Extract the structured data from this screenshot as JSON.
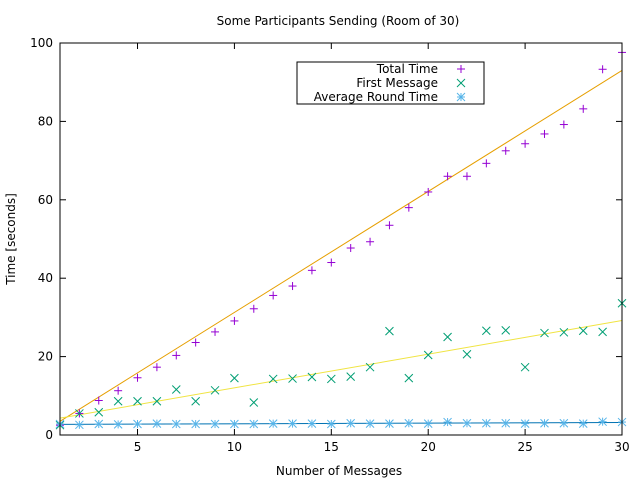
{
  "chart_data": {
    "type": "scatter",
    "title": "Some Participants Sending (Room of 30)",
    "xlabel": "Number of Messages",
    "ylabel": "Time [seconds]",
    "xlim": [
      1,
      30
    ],
    "ylim": [
      0,
      100
    ],
    "xticks": [
      5,
      10,
      15,
      20,
      25,
      30
    ],
    "yticks": [
      0,
      20,
      40,
      60,
      80,
      100
    ],
    "legend_position": "top-center",
    "grid": false,
    "series": [
      {
        "name": "Total Time",
        "marker": "plus",
        "color": "#9400d3",
        "x": [
          1,
          2,
          3,
          4,
          5,
          6,
          7,
          8,
          9,
          10,
          11,
          12,
          13,
          14,
          15,
          16,
          17,
          18,
          19,
          20,
          21,
          22,
          23,
          24,
          25,
          26,
          27,
          28,
          29,
          30
        ],
        "y": [
          2.5,
          5.5,
          8.8,
          11.3,
          14.6,
          17.3,
          20.3,
          23.6,
          26.3,
          29.1,
          32.2,
          35.6,
          38.0,
          42.0,
          44.0,
          47.7,
          49.3,
          53.5,
          58.0,
          62.0,
          66.0,
          66.0,
          69.3,
          72.5,
          74.3,
          76.8,
          79.2,
          83.2,
          93.3,
          97.6
        ]
      },
      {
        "name": "First Message",
        "marker": "cross",
        "color": "#009e73",
        "x": [
          1,
          2,
          3,
          4,
          5,
          6,
          7,
          8,
          9,
          10,
          11,
          12,
          13,
          14,
          15,
          16,
          17,
          18,
          19,
          20,
          21,
          22,
          23,
          24,
          25,
          26,
          27,
          28,
          29,
          30
        ],
        "y": [
          2.5,
          5.5,
          5.8,
          8.6,
          8.6,
          8.6,
          11.6,
          8.6,
          11.4,
          14.5,
          8.3,
          14.3,
          14.4,
          14.8,
          14.3,
          14.9,
          17.3,
          26.5,
          14.5,
          20.4,
          25.0,
          20.6,
          26.6,
          26.7,
          17.3,
          26.0,
          26.2,
          26.6,
          26.3,
          33.6
        ]
      },
      {
        "name": "Average Round Time",
        "marker": "star",
        "color": "#56b4e9",
        "x": [
          1,
          2,
          3,
          4,
          5,
          6,
          7,
          8,
          9,
          10,
          11,
          12,
          13,
          14,
          15,
          16,
          17,
          18,
          19,
          20,
          21,
          22,
          23,
          24,
          25,
          26,
          27,
          28,
          29,
          30
        ],
        "y": [
          2.8,
          2.6,
          2.8,
          2.7,
          2.8,
          2.9,
          2.8,
          2.8,
          2.8,
          2.8,
          2.8,
          2.9,
          2.9,
          2.9,
          2.8,
          3.0,
          2.9,
          2.9,
          3.0,
          2.9,
          3.3,
          3.0,
          3.0,
          3.0,
          2.9,
          3.0,
          3.0,
          2.9,
          3.4,
          3.3
        ]
      }
    ],
    "fit_lines": [
      {
        "series": "Total Time",
        "color": "#e69f00",
        "y_start": 3.5,
        "y_end": 93.0
      },
      {
        "series": "First Message",
        "color": "#f0e442",
        "y_start": 4.3,
        "y_end": 29.2
      },
      {
        "series": "Average Round Time",
        "color": "#0072b2",
        "y_start": 2.7,
        "y_end": 3.2
      }
    ]
  }
}
